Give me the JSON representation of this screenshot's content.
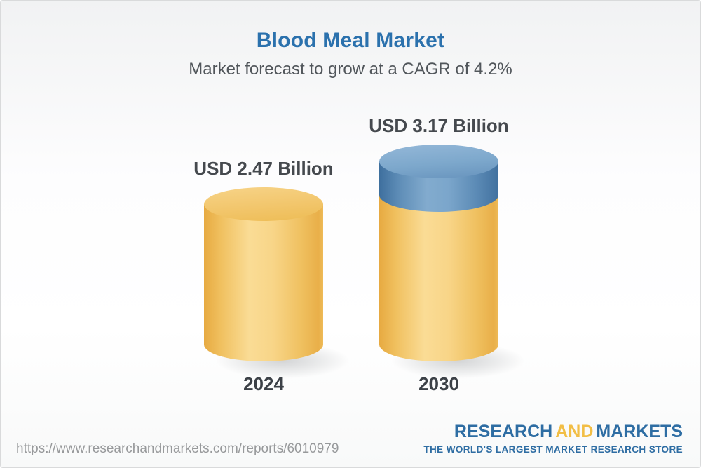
{
  "header": {
    "title": "Blood Meal Market",
    "subtitle": "Market forecast to grow at a CAGR of 4.2%"
  },
  "chart_data": {
    "type": "bar",
    "style": "3d-cylinder",
    "title": "Blood Meal Market",
    "subtitle": "Market forecast to grow at a CAGR of 4.2%",
    "cagr_percent": 4.2,
    "unit": "USD Billion",
    "categories": [
      "2024",
      "2030"
    ],
    "values": [
      2.47,
      3.17
    ],
    "value_labels": [
      "USD 2.47 Billion",
      "USD 3.17 Billion"
    ],
    "legend": "none",
    "grid": "off",
    "colors": {
      "base_segment": "#f2c363",
      "growth_segment": "#6793bd",
      "title": "#2b71ad",
      "value_label_text": "#45494e"
    }
  },
  "footer": {
    "source_url": "https://www.researchandmarkets.com/reports/6010979",
    "logo": {
      "word1": "RESEARCH",
      "word2": "AND",
      "word3": "MARKETS",
      "tagline": "THE WORLD'S LARGEST MARKET RESEARCH STORE",
      "blue": "#2e6da3",
      "gold": "#f2be45"
    }
  }
}
